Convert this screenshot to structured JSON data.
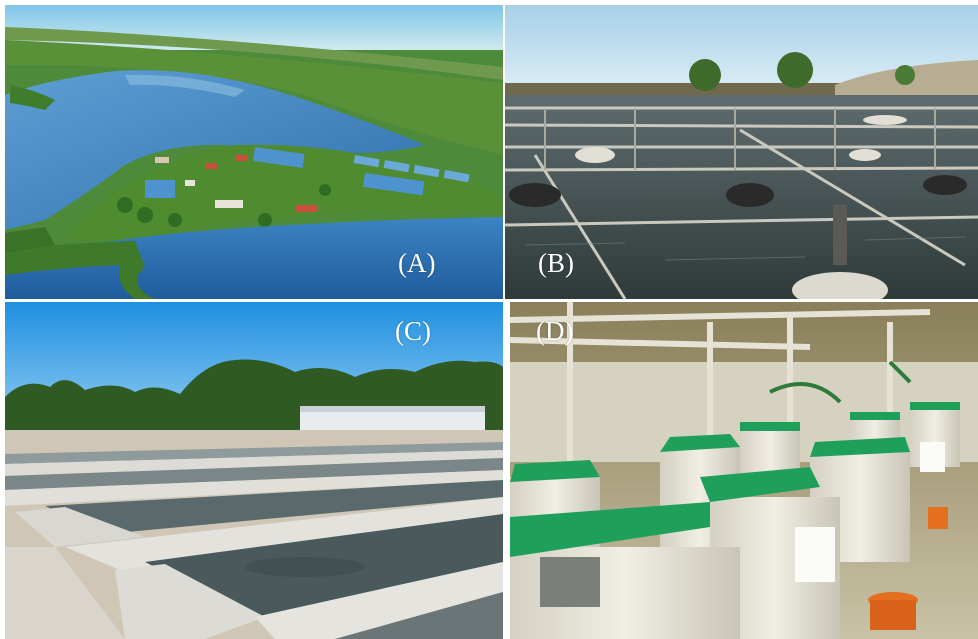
{
  "figure": {
    "panels": [
      {
        "label": "(A)",
        "depicts": "aerial-lake-fish-farm"
      },
      {
        "label": "(B)",
        "depicts": "floating-net-cages"
      },
      {
        "label": "(C)",
        "depicts": "outdoor-raceway-ponds"
      },
      {
        "label": "(D)",
        "depicts": "indoor-recirculating-tanks"
      }
    ],
    "colors": {
      "sky": "#9fd3ee",
      "water": "#3f7fb8",
      "vegetation": "#3f8a2e",
      "tank_lid": "#1fa05a",
      "tank_body": "#e9e6da",
      "label_text": "#ffffff"
    }
  }
}
